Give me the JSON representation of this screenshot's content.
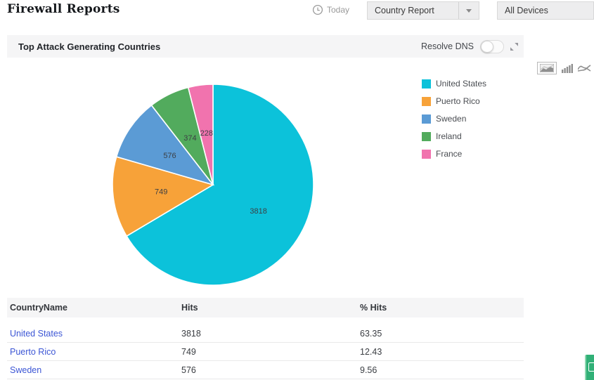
{
  "header": {
    "title": "Firewall Reports",
    "time_filter": "Today",
    "time_filter_icon": "clock-icon",
    "report_select_value": "Country Report",
    "device_select_value": "All Devices"
  },
  "section": {
    "title": "Top Attack Generating Countries",
    "resolve_dns_label": "Resolve DNS",
    "resolve_dns_state": "off",
    "expand_icon": "resize-icon"
  },
  "chart_toolbar": {
    "icons": [
      {
        "name": "area-chart-icon",
        "selected": true
      },
      {
        "name": "bar-chart-icon",
        "selected": false
      },
      {
        "name": "line-chart-icon",
        "selected": false
      }
    ]
  },
  "chart_data": {
    "type": "pie",
    "title": "Top Attack Generating Countries",
    "start_angle_deg": 0,
    "direction": "clockwise",
    "legend_position": "right",
    "data_labels": "values",
    "slices": [
      {
        "label": "United States",
        "value": 3818,
        "color": "#0cc2da"
      },
      {
        "label": "Puerto Rico",
        "value": 749,
        "color": "#f7a239"
      },
      {
        "label": "Sweden",
        "value": 576,
        "color": "#5b9bd5"
      },
      {
        "label": "Ireland",
        "value": 374,
        "color": "#52ab5d"
      },
      {
        "label": "France",
        "value": 228,
        "color": "#f173ae"
      }
    ]
  },
  "table": {
    "columns": [
      "CountryName",
      "Hits",
      "% Hits"
    ],
    "rows": [
      {
        "country": "United States",
        "hits": "3818",
        "pct": "63.35"
      },
      {
        "country": "Puerto Rico",
        "hits": "749",
        "pct": "12.43"
      },
      {
        "country": "Sweden",
        "hits": "576",
        "pct": "9.56"
      }
    ],
    "link_color": "#3c56d5"
  },
  "feedback_tab": {
    "icon": "chat-icon",
    "color": "#31b077"
  }
}
